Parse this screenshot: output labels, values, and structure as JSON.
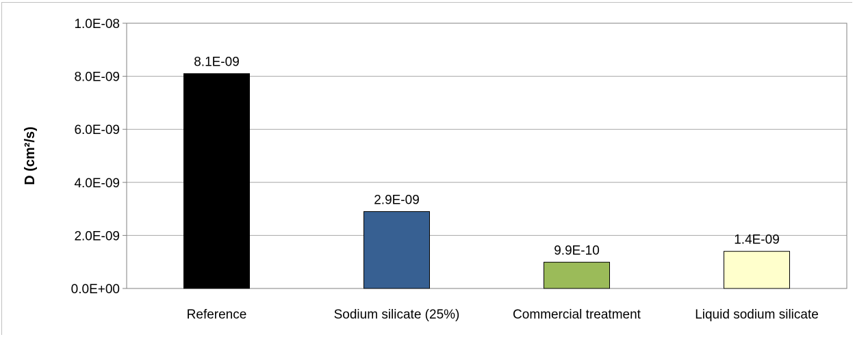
{
  "chart_data": {
    "type": "bar",
    "title": "",
    "xlabel": "",
    "ylabel": "D (cm²/s)",
    "ylim": [
      0,
      1e-08
    ],
    "ytick_values": [
      0,
      2e-09,
      4e-09,
      6e-09,
      8e-09,
      1e-08
    ],
    "ytick_labels": [
      "0.0E+00",
      "2.0E-09",
      "4.0E-09",
      "6.0E-09",
      "8.0E-09",
      "1.0E-08"
    ],
    "grid": true,
    "legend": "none",
    "categories": [
      "Reference",
      "Sodium silicate (25%)",
      "Commercial treatment",
      "Liquid sodium silicate"
    ],
    "values": [
      8.1e-09,
      2.9e-09,
      9.9e-10,
      1.4e-09
    ],
    "data_labels": [
      "8.1E-09",
      "2.9E-09",
      "9.9E-10",
      "1.4E-09"
    ],
    "colors": [
      "#000000",
      "#376092",
      "#9bbb59",
      "#ffffcc"
    ]
  }
}
